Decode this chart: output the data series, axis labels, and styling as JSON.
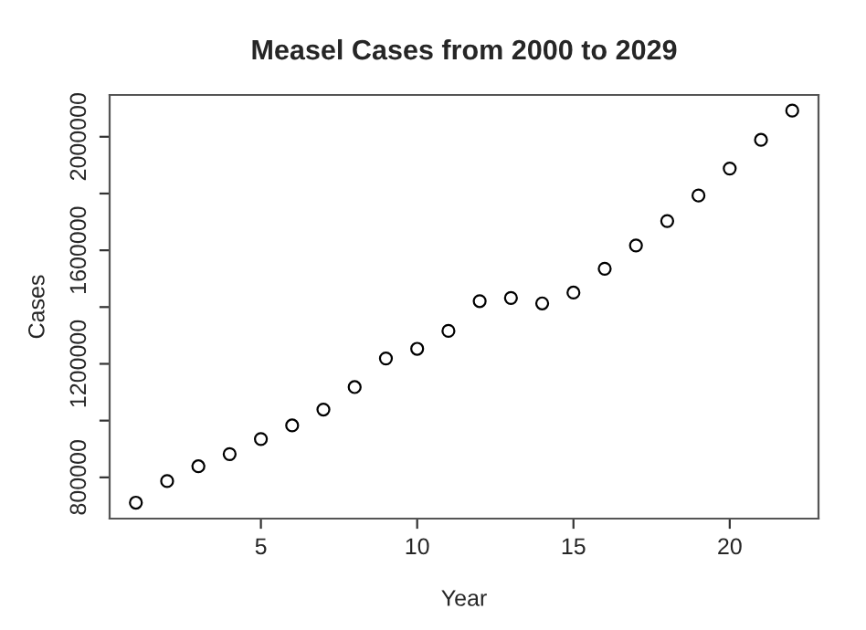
{
  "chart_data": {
    "type": "scatter",
    "title": "Measel Cases from 2000 to 2029",
    "xlabel": "Year",
    "ylabel": "Cases",
    "x": [
      1,
      2,
      3,
      4,
      5,
      6,
      7,
      8,
      9,
      10,
      11,
      12,
      13,
      14,
      15,
      16,
      17,
      18,
      19,
      20,
      21,
      22
    ],
    "series": [
      {
        "color": "#000000",
        "values": [
          711000,
          787000,
          839000,
          882000,
          935000,
          983000,
          1039000,
          1118000,
          1219000,
          1253000,
          1316000,
          1421000,
          1432000,
          1413000,
          1451000,
          1535000,
          1617000,
          1703000,
          1793000,
          1888000,
          1989000,
          2092000
        ]
      }
    ],
    "marker": "circle",
    "grid": false,
    "legend": false,
    "xlim": [
      0.16,
      22.84
    ],
    "xticks": [
      5,
      10,
      15,
      20
    ],
    "ylim": [
      654720,
      2147280
    ],
    "yticks": [
      800000,
      {
        "value": 1000000,
        "label": null
      },
      1200000,
      {
        "value": 1400000,
        "label": null
      },
      1600000,
      {
        "value": 1800000,
        "label": null
      },
      2000000
    ]
  }
}
